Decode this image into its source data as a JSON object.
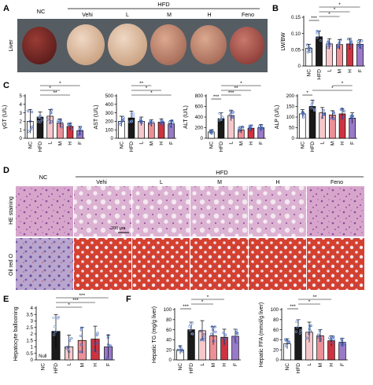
{
  "panels": {
    "A": {
      "letter": "A",
      "row_label": "Liver",
      "group_nc": "NC",
      "group_hfd": "HFD",
      "groups": [
        "Vehi",
        "L",
        "M",
        "H",
        "Feno"
      ]
    },
    "D": {
      "letter": "D",
      "group_nc": "NC",
      "group_hfd": "HFD",
      "groups": [
        "Vehi",
        "L",
        "M",
        "H",
        "Feno"
      ],
      "row_labels": [
        "HE staining",
        "Oil red O"
      ],
      "scale_bar": "200 μm"
    },
    "E": {
      "null_label": "Null"
    }
  },
  "colors": {
    "NC": "#ffffff",
    "HFD": "#1a1a1a",
    "L": "#f6c8cc",
    "M": "#ec8f97",
    "H": "#cf3340",
    "F": "#9a79c9",
    "points_nc": "#6a8fd0",
    "points_hfd": "#4a74c8",
    "he_tissue": "#d9a3c9",
    "oil_tissue": "#c23a2c",
    "liver": "#c98a78"
  },
  "chart_data": [
    {
      "id": "B",
      "letter": "B",
      "type": "bar",
      "ylabel": "LW/BW",
      "categories": [
        "NC",
        "HFD",
        "L",
        "M",
        "H",
        "F"
      ],
      "values": [
        0.055,
        0.09,
        0.068,
        0.066,
        0.068,
        0.067
      ],
      "errors": [
        0.012,
        0.018,
        0.016,
        0.015,
        0.017,
        0.014
      ],
      "ylim": [
        0,
        0.15
      ],
      "yticks": [
        0,
        0.05,
        0.1,
        0.15
      ],
      "yticklabels": [
        "0",
        "0.05",
        "0.10",
        "0.15"
      ],
      "significance": [
        [
          "NC",
          "HFD",
          "***"
        ],
        [
          "HFD",
          "M",
          "*"
        ],
        [
          "HFD",
          "H",
          "*"
        ],
        [
          "HFD",
          "F",
          "*"
        ]
      ]
    },
    {
      "id": "C1",
      "letter": "C",
      "type": "bar",
      "ylabel": "γGT (U/L)",
      "categories": [
        "NC",
        "HFD",
        "L",
        "M",
        "H",
        "F"
      ],
      "values": [
        2.0,
        2.5,
        2.6,
        1.8,
        1.4,
        0.9
      ],
      "errors": [
        1.4,
        0.6,
        0.8,
        0.5,
        0.4,
        0.5
      ],
      "ylim": [
        0,
        5
      ],
      "yticks": [
        0,
        1,
        2,
        3,
        4,
        5
      ],
      "yticklabels": [
        "0",
        "1",
        "2",
        "3",
        "4",
        "5"
      ],
      "significance": [
        [
          "HFD",
          "H",
          "**"
        ],
        [
          "HFD",
          "M",
          "*"
        ],
        [
          "HFD",
          "F",
          "*"
        ]
      ]
    },
    {
      "id": "C2",
      "type": "bar",
      "ylabel": "AST (U/L)",
      "categories": [
        "NC",
        "HFD",
        "L",
        "M",
        "H",
        "F"
      ],
      "values": [
        200,
        240,
        200,
        180,
        190,
        170
      ],
      "errors": [
        60,
        80,
        50,
        40,
        40,
        40
      ],
      "ylim": [
        0,
        500
      ],
      "yticks": [
        0,
        100,
        200,
        300,
        400,
        500
      ],
      "yticklabels": [
        "0",
        "100",
        "200",
        "300",
        "400",
        "500"
      ],
      "significance": [
        [
          "HFD",
          "F",
          "*"
        ],
        [
          "HFD",
          "H",
          "*"
        ],
        [
          "HFD",
          "M",
          "**"
        ]
      ]
    },
    {
      "id": "C3",
      "type": "bar",
      "ylabel": "ALT (U/L)",
      "categories": [
        "NC",
        "HFD",
        "L",
        "M",
        "H",
        "F"
      ],
      "values": [
        120,
        370,
        430,
        160,
        190,
        200
      ],
      "errors": [
        40,
        110,
        100,
        60,
        60,
        60
      ],
      "ylim": [
        0,
        800
      ],
      "yticks": [
        0,
        200,
        400,
        600,
        800
      ],
      "yticklabels": [
        "0",
        "200",
        "400",
        "600",
        "800"
      ],
      "significance": [
        [
          "NC",
          "HFD",
          "***"
        ],
        [
          "HFD",
          "M",
          "***"
        ],
        [
          "HFD",
          "H",
          "**"
        ],
        [
          "HFD",
          "F",
          "*"
        ]
      ]
    },
    {
      "id": "C4",
      "type": "bar",
      "ylabel": "ALP (U/L)",
      "categories": [
        "NC",
        "HFD",
        "L",
        "M",
        "H",
        "F"
      ],
      "values": [
        115,
        150,
        120,
        110,
        115,
        95
      ],
      "errors": [
        20,
        30,
        25,
        20,
        25,
        25
      ],
      "ylim": [
        0,
        200
      ],
      "yticks": [
        0,
        50,
        100,
        150,
        200
      ],
      "yticklabels": [
        "0",
        "50",
        "100",
        "150",
        "200"
      ],
      "significance": [
        [
          "NC",
          "HFD",
          "*"
        ],
        [
          "HFD",
          "F",
          "*"
        ],
        [
          "M",
          "F",
          "*"
        ]
      ]
    },
    {
      "id": "E",
      "letter": "E",
      "type": "bar",
      "ylabel": "Hepatocyte ballooning",
      "categories": [
        "NC",
        "HFD",
        "L",
        "M",
        "H",
        "F"
      ],
      "values": [
        0,
        2.2,
        1.0,
        1.5,
        1.6,
        1.0
      ],
      "errors": [
        0,
        1.3,
        0.9,
        1.0,
        1.0,
        0.9
      ],
      "ylim": [
        0,
        4
      ],
      "yticks": [
        0,
        0.5,
        1,
        1.5,
        2,
        2.5,
        3,
        3.5,
        4
      ],
      "yticklabels": [
        "0",
        "0.5",
        "1",
        "1.5",
        "2",
        "2.5",
        "3",
        "3.5",
        "4"
      ],
      "significance": [
        [
          "HFD",
          "M",
          "*"
        ],
        [
          "HFD",
          "H",
          "***"
        ],
        [
          "HFD",
          "F",
          "***"
        ]
      ]
    },
    {
      "id": "F1",
      "letter": "F",
      "type": "bar",
      "ylabel": "Hepatic TG (mg/g liver)",
      "categories": [
        "NC",
        "HFD",
        "L",
        "M",
        "H",
        "F"
      ],
      "values": [
        20,
        60,
        58,
        48,
        45,
        47
      ],
      "errors": [
        8,
        15,
        20,
        18,
        16,
        14
      ],
      "ylim": [
        0,
        100
      ],
      "yticks": [
        0,
        20,
        40,
        60,
        80,
        100
      ],
      "yticklabels": [
        "0",
        "20",
        "40",
        "60",
        "80",
        "100"
      ],
      "significance": [
        [
          "NC",
          "HFD",
          "***"
        ],
        [
          "HFD",
          "M",
          "*"
        ],
        [
          "HFD",
          "H",
          "*"
        ]
      ]
    },
    {
      "id": "F2",
      "type": "bar",
      "ylabel": "Hepatic FFA (mmol/g liver)",
      "categories": [
        "NC",
        "HFD",
        "L",
        "M",
        "H",
        "F"
      ],
      "values": [
        32,
        65,
        55,
        48,
        38,
        35
      ],
      "errors": [
        10,
        15,
        20,
        12,
        10,
        8
      ],
      "ylim": [
        0,
        100
      ],
      "yticks": [
        0,
        20,
        40,
        60,
        80,
        100
      ],
      "yticklabels": [
        "0",
        "20",
        "40",
        "60",
        "80",
        "100"
      ],
      "significance": [
        [
          "NC",
          "HFD",
          "***"
        ],
        [
          "HFD",
          "M",
          "*"
        ],
        [
          "HFD",
          "H",
          "**"
        ]
      ]
    }
  ]
}
